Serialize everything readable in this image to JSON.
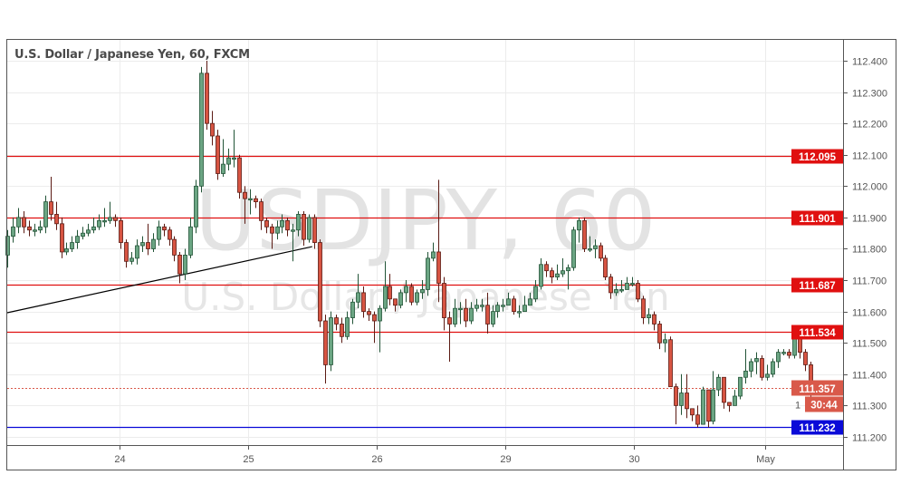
{
  "header": {
    "title": "U.S. Dollar / Japanese Yen, 60, FXCM"
  },
  "watermark": {
    "symbol": "USDJPY, 60",
    "name": "U.S. Dollar / Japanese Yen"
  },
  "chart_data": {
    "type": "candlestick",
    "title": "U.S. Dollar / Japanese Yen, 60, FXCM",
    "ylim": [
      111.15,
      112.47
    ],
    "y_ticks": [
      "111.200",
      "111.300",
      "111.400",
      "111.500",
      "111.600",
      "111.700",
      "111.800",
      "111.900",
      "112.000",
      "112.100",
      "112.200",
      "112.300",
      "112.400"
    ],
    "x_ticks": [
      {
        "label": "24",
        "candle": 20.8
      },
      {
        "label": "25",
        "candle": 44.7
      },
      {
        "label": "26",
        "candle": 68.6
      },
      {
        "label": "29",
        "candle": 92.4
      },
      {
        "label": "30",
        "candle": 116.3
      },
      {
        "label": "May",
        "candle": 140.7
      }
    ],
    "grid": true,
    "candle_fields": [
      "open",
      "high",
      "low",
      "close"
    ],
    "candles": [
      [
        111.78,
        111.86,
        111.74,
        111.84
      ],
      [
        111.84,
        111.9,
        111.82,
        111.87
      ],
      [
        111.87,
        111.93,
        111.85,
        111.9
      ],
      [
        111.9,
        111.92,
        111.85,
        111.87
      ],
      [
        111.87,
        111.89,
        111.84,
        111.86
      ],
      [
        111.86,
        111.88,
        111.84,
        111.86
      ],
      [
        111.86,
        111.89,
        111.85,
        111.87
      ],
      [
        111.87,
        111.97,
        111.85,
        111.95
      ],
      [
        111.95,
        112.03,
        111.89,
        111.91
      ],
      [
        111.91,
        111.95,
        111.86,
        111.88
      ],
      [
        111.88,
        111.9,
        111.77,
        111.79
      ],
      [
        111.79,
        111.82,
        111.78,
        111.8
      ],
      [
        111.8,
        111.84,
        111.79,
        111.82
      ],
      [
        111.82,
        111.86,
        111.8,
        111.84
      ],
      [
        111.84,
        111.87,
        111.83,
        111.85
      ],
      [
        111.85,
        111.88,
        111.84,
        111.86
      ],
      [
        111.86,
        111.9,
        111.85,
        111.87
      ],
      [
        111.87,
        111.91,
        111.86,
        111.89
      ],
      [
        111.89,
        111.93,
        111.87,
        111.89
      ],
      [
        111.89,
        111.95,
        111.88,
        111.9
      ],
      [
        111.9,
        111.91,
        111.87,
        111.89
      ],
      [
        111.89,
        111.9,
        111.8,
        111.82
      ],
      [
        111.82,
        111.83,
        111.74,
        111.76
      ],
      [
        111.76,
        111.79,
        111.75,
        111.77
      ],
      [
        111.77,
        111.83,
        111.75,
        111.81
      ],
      [
        111.81,
        111.84,
        111.79,
        111.82
      ],
      [
        111.82,
        111.88,
        111.78,
        111.8
      ],
      [
        111.8,
        111.85,
        111.79,
        111.83
      ],
      [
        111.83,
        111.89,
        111.81,
        111.87
      ],
      [
        111.87,
        111.88,
        111.84,
        111.86
      ],
      [
        111.86,
        111.87,
        111.81,
        111.83
      ],
      [
        111.83,
        111.84,
        111.76,
        111.78
      ],
      [
        111.78,
        111.79,
        111.69,
        111.72
      ],
      [
        111.72,
        111.8,
        111.7,
        111.78
      ],
      [
        111.78,
        111.9,
        111.77,
        111.87
      ],
      [
        111.87,
        112.02,
        111.85,
        112.0
      ],
      [
        112.0,
        112.38,
        111.98,
        112.36
      ],
      [
        112.36,
        112.4,
        112.18,
        112.2
      ],
      [
        112.2,
        112.24,
        112.13,
        112.16
      ],
      [
        112.16,
        112.18,
        112.02,
        112.04
      ],
      [
        112.04,
        112.15,
        112.03,
        112.07
      ],
      [
        112.07,
        112.12,
        112.05,
        112.09
      ],
      [
        112.09,
        112.18,
        112.06,
        112.09
      ],
      [
        112.09,
        112.1,
        111.96,
        111.98
      ],
      [
        111.98,
        112.0,
        111.88,
        111.96
      ],
      [
        111.96,
        111.99,
        111.91,
        111.96
      ],
      [
        111.96,
        111.97,
        111.93,
        111.95
      ],
      [
        111.95,
        111.96,
        111.86,
        111.89
      ],
      [
        111.89,
        111.9,
        111.85,
        111.87
      ],
      [
        111.87,
        111.88,
        111.8,
        111.85
      ],
      [
        111.85,
        111.89,
        111.83,
        111.87
      ],
      [
        111.87,
        111.91,
        111.85,
        111.89
      ],
      [
        111.89,
        111.9,
        111.84,
        111.86
      ],
      [
        111.86,
        111.88,
        111.76,
        111.86
      ],
      [
        111.86,
        111.92,
        111.84,
        111.91
      ],
      [
        111.91,
        111.92,
        111.81,
        111.83
      ],
      [
        111.83,
        111.91,
        111.82,
        111.9
      ],
      [
        111.9,
        111.91,
        111.8,
        111.82
      ],
      [
        111.82,
        111.83,
        111.55,
        111.57
      ],
      [
        111.57,
        111.59,
        111.37,
        111.43
      ],
      [
        111.43,
        111.6,
        111.41,
        111.58
      ],
      [
        111.58,
        111.59,
        111.54,
        111.56
      ],
      [
        111.56,
        111.58,
        111.5,
        111.52
      ],
      [
        111.52,
        111.6,
        111.51,
        111.58
      ],
      [
        111.58,
        111.64,
        111.56,
        111.63
      ],
      [
        111.63,
        111.72,
        111.61,
        111.66
      ],
      [
        111.66,
        111.68,
        111.58,
        111.6
      ],
      [
        111.6,
        111.61,
        111.57,
        111.59
      ],
      [
        111.59,
        111.6,
        111.5,
        111.57
      ],
      [
        111.57,
        111.62,
        111.47,
        111.61
      ],
      [
        111.61,
        111.76,
        111.6,
        111.68
      ],
      [
        111.68,
        111.72,
        111.62,
        111.64
      ],
      [
        111.64,
        111.64,
        111.6,
        111.62
      ],
      [
        111.62,
        111.67,
        111.61,
        111.66
      ],
      [
        111.66,
        111.7,
        111.63,
        111.68
      ],
      [
        111.68,
        111.69,
        111.62,
        111.63
      ],
      [
        111.63,
        111.67,
        111.62,
        111.66
      ],
      [
        111.66,
        111.7,
        111.64,
        111.67
      ],
      [
        111.67,
        111.79,
        111.65,
        111.77
      ],
      [
        111.77,
        111.82,
        111.76,
        111.79
      ],
      [
        111.79,
        112.02,
        111.63,
        111.69
      ],
      [
        111.69,
        111.71,
        111.54,
        111.58
      ],
      [
        111.58,
        111.6,
        111.44,
        111.56
      ],
      [
        111.56,
        111.64,
        111.55,
        111.61
      ],
      [
        111.61,
        111.63,
        111.56,
        111.61
      ],
      [
        111.61,
        111.64,
        111.55,
        111.57
      ],
      [
        111.57,
        111.63,
        111.56,
        111.61
      ],
      [
        111.61,
        111.64,
        111.6,
        111.62
      ],
      [
        111.62,
        111.64,
        111.6,
        111.62
      ],
      [
        111.62,
        111.66,
        111.53,
        111.56
      ],
      [
        111.56,
        111.62,
        111.55,
        111.6
      ],
      [
        111.6,
        111.63,
        111.58,
        111.62
      ],
      [
        111.62,
        111.64,
        111.6,
        111.62
      ],
      [
        111.62,
        111.66,
        111.62,
        111.64
      ],
      [
        111.64,
        111.65,
        111.59,
        111.6
      ],
      [
        111.6,
        111.62,
        111.58,
        111.6
      ],
      [
        111.6,
        111.65,
        111.6,
        111.62
      ],
      [
        111.62,
        111.66,
        111.62,
        111.64
      ],
      [
        111.64,
        111.7,
        111.63,
        111.68
      ],
      [
        111.68,
        111.77,
        111.67,
        111.75
      ],
      [
        111.75,
        111.76,
        111.71,
        111.73
      ],
      [
        111.73,
        111.74,
        111.69,
        111.71
      ],
      [
        111.71,
        111.75,
        111.7,
        111.72
      ],
      [
        111.72,
        111.77,
        111.71,
        111.73
      ],
      [
        111.73,
        111.75,
        111.67,
        111.74
      ],
      [
        111.74,
        111.87,
        111.73,
        111.86
      ],
      [
        111.86,
        111.9,
        111.82,
        111.89
      ],
      [
        111.89,
        111.9,
        111.79,
        111.8
      ],
      [
        111.8,
        111.84,
        111.79,
        111.8
      ],
      [
        111.8,
        111.83,
        111.77,
        111.81
      ],
      [
        111.81,
        111.82,
        111.76,
        111.77
      ],
      [
        111.77,
        111.78,
        111.7,
        111.71
      ],
      [
        111.71,
        111.72,
        111.64,
        111.66
      ],
      [
        111.66,
        111.69,
        111.65,
        111.67
      ],
      [
        111.67,
        111.7,
        111.66,
        111.67
      ],
      [
        111.67,
        111.71,
        111.68,
        111.69
      ],
      [
        111.69,
        111.71,
        111.68,
        111.69
      ],
      [
        111.69,
        111.7,
        111.63,
        111.64
      ],
      [
        111.64,
        111.65,
        111.56,
        111.58
      ],
      [
        111.58,
        111.61,
        111.56,
        111.59
      ],
      [
        111.59,
        111.6,
        111.54,
        111.56
      ],
      [
        111.56,
        111.57,
        111.48,
        111.5
      ],
      [
        111.5,
        111.53,
        111.47,
        111.51
      ],
      [
        111.51,
        111.52,
        111.36,
        111.36
      ],
      [
        111.36,
        111.37,
        111.24,
        111.3
      ],
      [
        111.3,
        111.4,
        111.27,
        111.34
      ],
      [
        111.34,
        111.4,
        111.26,
        111.29
      ],
      [
        111.29,
        111.29,
        111.25,
        111.27
      ],
      [
        111.27,
        111.3,
        111.23,
        111.24
      ],
      [
        111.24,
        111.36,
        111.24,
        111.35
      ],
      [
        111.35,
        111.35,
        111.23,
        111.25
      ],
      [
        111.25,
        111.41,
        111.24,
        111.35
      ],
      [
        111.35,
        111.4,
        111.33,
        111.39
      ],
      [
        111.39,
        111.39,
        111.29,
        111.31
      ],
      [
        111.31,
        111.31,
        111.28,
        111.3
      ],
      [
        111.3,
        111.35,
        111.3,
        111.33
      ],
      [
        111.33,
        111.39,
        111.32,
        111.39
      ],
      [
        111.39,
        111.48,
        111.37,
        111.41
      ],
      [
        111.41,
        111.45,
        111.39,
        111.44
      ],
      [
        111.44,
        111.47,
        111.4,
        111.45
      ],
      [
        111.45,
        111.46,
        111.38,
        111.39
      ],
      [
        111.39,
        111.43,
        111.38,
        111.4
      ],
      [
        111.4,
        111.45,
        111.39,
        111.44
      ],
      [
        111.44,
        111.48,
        111.42,
        111.47
      ],
      [
        111.47,
        111.48,
        111.46,
        111.47
      ],
      [
        111.47,
        111.48,
        111.45,
        111.46
      ],
      [
        111.46,
        111.55,
        111.45,
        111.54
      ],
      [
        111.54,
        111.55,
        111.45,
        111.47
      ],
      [
        111.47,
        111.48,
        111.41,
        111.43
      ],
      [
        111.43,
        111.44,
        111.31,
        111.357
      ]
    ],
    "trendline": {
      "from": {
        "candle": 0,
        "price": 111.596
      },
      "to": {
        "candle": 56.6,
        "price": 111.807
      },
      "color": "#000000"
    },
    "levels": [
      {
        "price": 111.901,
        "label": "111.901",
        "color": "#e01010"
      },
      {
        "price": 112.095,
        "label": "112.095",
        "color": "#e01010"
      },
      {
        "price": 111.687,
        "label": "111.687",
        "color": "#e01010"
      },
      {
        "price": 111.534,
        "label": "111.534",
        "color": "#e01010"
      },
      {
        "price": 111.232,
        "label": "111.232",
        "color": "#0a0ad8"
      }
    ],
    "last_price": {
      "price": 111.357,
      "label": "111.357",
      "countdown": "30:44",
      "partial_tick": "1",
      "color": "#d9594a"
    },
    "colors": {
      "up": "#6ba583",
      "up_border": "#225437",
      "down": "#d75442",
      "down_border": "#5b1a13"
    }
  }
}
